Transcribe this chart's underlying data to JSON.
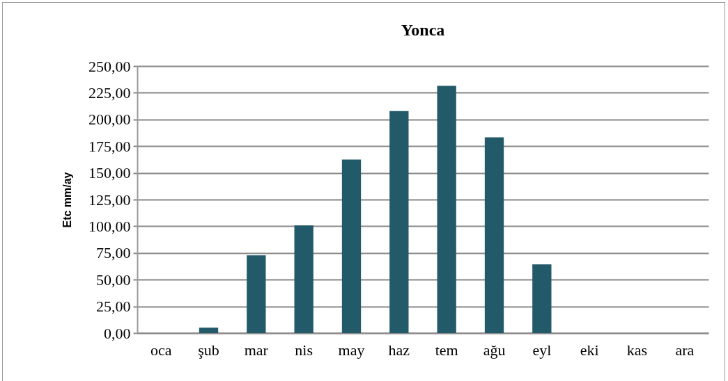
{
  "chart_data": {
    "type": "bar",
    "title": "Yonca",
    "ylabel": "Etc mm/ay",
    "categories": [
      "oca",
      "şub",
      "mar",
      "nis",
      "may",
      "haz",
      "tem",
      "ağu",
      "eyl",
      "eki",
      "kas",
      "ara"
    ],
    "values": [
      0,
      5.0,
      72.8,
      100.7,
      162.4,
      207.8,
      231.5,
      183.3,
      64.3,
      0,
      0,
      0
    ],
    "color": "#235a6a",
    "ylim": [
      0,
      250
    ],
    "yticks": [
      {
        "value": 0,
        "label": "0,00"
      },
      {
        "value": 25,
        "label": "25,00"
      },
      {
        "value": 50,
        "label": "50,00"
      },
      {
        "value": 75,
        "label": "75,00"
      },
      {
        "value": 100,
        "label": "100,00"
      },
      {
        "value": 125,
        "label": "125,00"
      },
      {
        "value": 150,
        "label": "150,00"
      },
      {
        "value": 175,
        "label": "175,00"
      },
      {
        "value": 200,
        "label": "200,00"
      },
      {
        "value": 225,
        "label": "225,00"
      },
      {
        "value": 250,
        "label": "250,00"
      }
    ],
    "grid": "y"
  }
}
